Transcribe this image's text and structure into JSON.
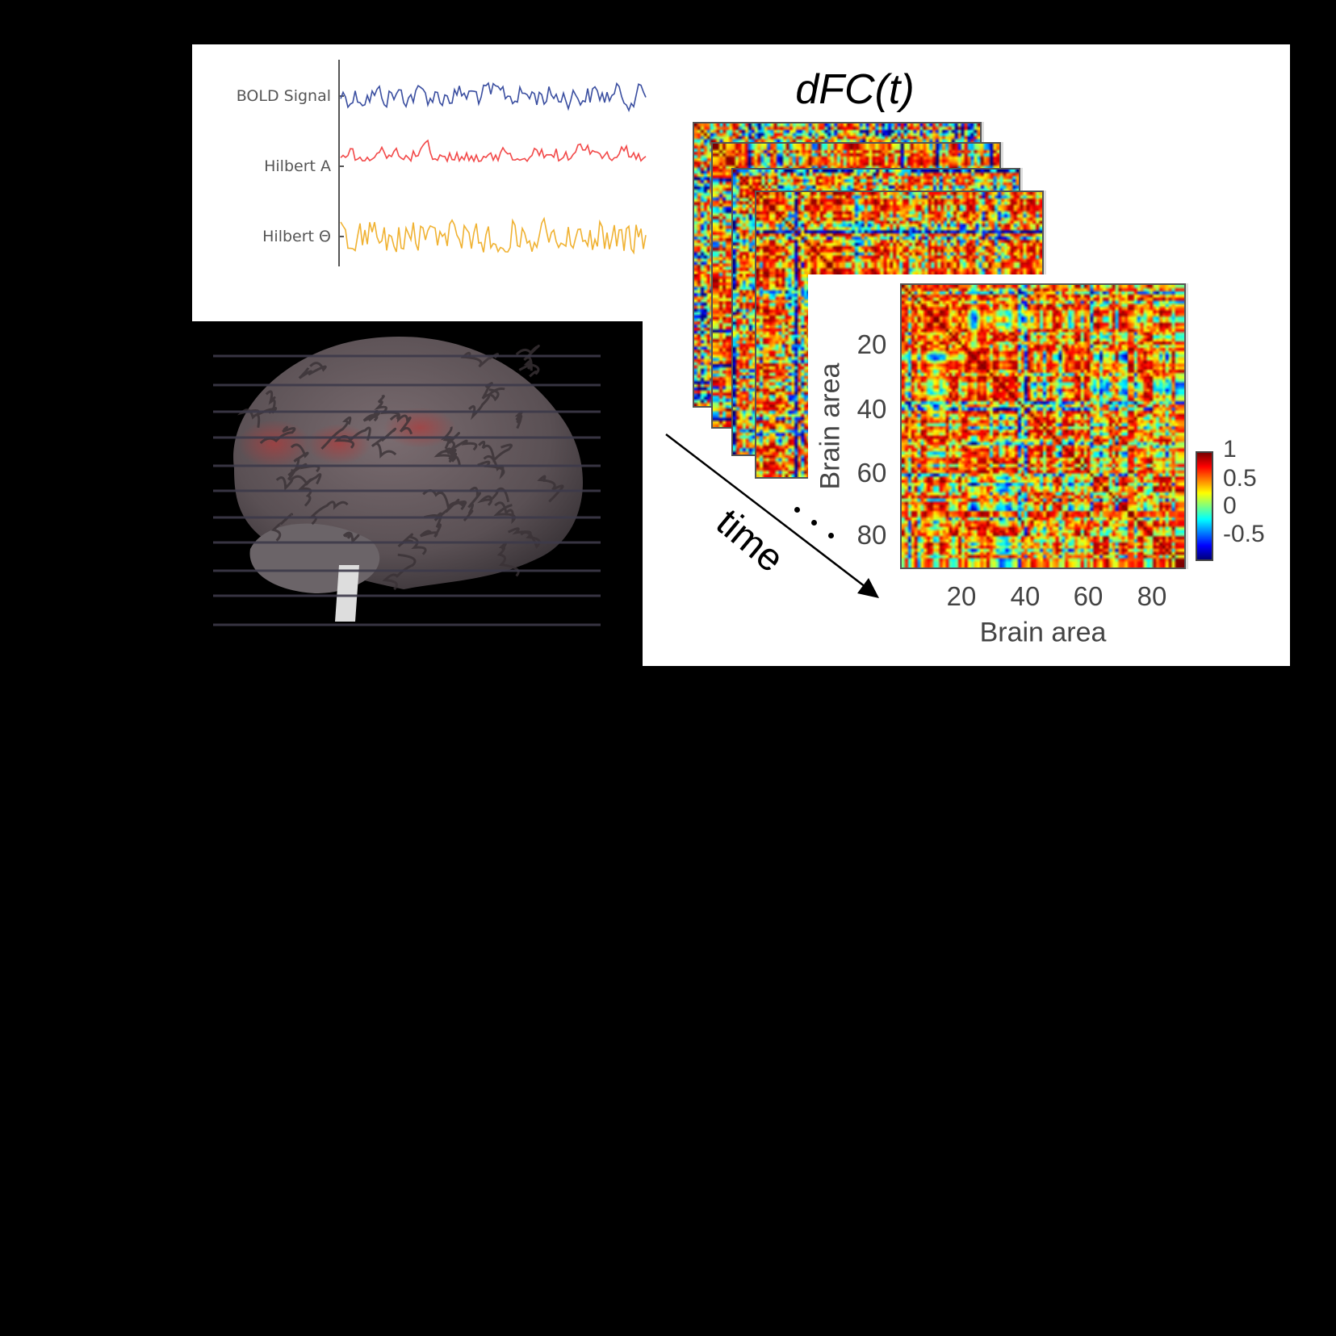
{
  "signals": {
    "labels": [
      "BOLD Signal",
      "Hilbert A",
      "Hilbert Θ"
    ],
    "colors": [
      "#3a4ea0",
      "#f24848",
      "#f0b232"
    ]
  },
  "dfc": {
    "title": "dFC(t)",
    "time_label": "time",
    "x_axis_label": "Brain area",
    "y_axis_label": "Brain area",
    "x_ticks": [
      "20",
      "40",
      "60",
      "80"
    ],
    "y_ticks": [
      "20",
      "40",
      "60",
      "80"
    ],
    "colorbar_ticks": [
      "1",
      "0.5",
      "0",
      "-0.5"
    ],
    "colormap": "jet",
    "color_range": [
      -0.75,
      1
    ]
  }
}
